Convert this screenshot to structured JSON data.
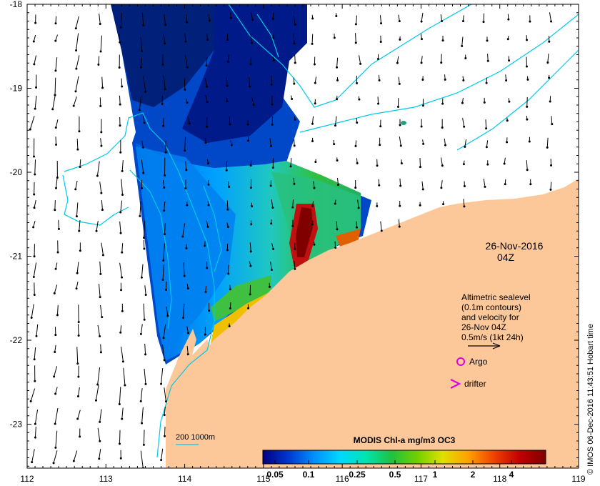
{
  "map": {
    "x_ticks": [
      "112",
      "113",
      "114",
      "115",
      "116",
      "117",
      "118",
      "119"
    ],
    "y_ticks": [
      "-18",
      "-19",
      "-20",
      "-21",
      "-22",
      "-23"
    ],
    "date": "26-Nov-2016",
    "time": "04Z",
    "info_lines": [
      "Altimetric sealevel",
      "(0.1m contours)",
      "and velocity for",
      "26-Nov 04Z",
      "0.5m/s (1kt 24h)"
    ],
    "argo_label": "Argo",
    "drifter_label": "drifter",
    "depth_label": "200  1000m",
    "credit": "© IMOS 06-Dec-2016 11:43:51 Hobart time"
  },
  "colorbar": {
    "title": "MODIS Chl-a mg/m3 OC3",
    "ticks": [
      "0.05",
      "0.1",
      "0.25",
      "0.5",
      "1",
      "2",
      "4"
    ],
    "stops": [
      "#000080",
      "#0038d0",
      "#0090ff",
      "#00d8ff",
      "#00e4b0",
      "#20c040",
      "#70d000",
      "#e0e000",
      "#ffa000",
      "#f04000",
      "#c00000",
      "#800000"
    ]
  },
  "colors": {
    "land": "#fcc89a",
    "contour": "#00c8e8",
    "argo": "#e000e0",
    "drifter": "#e000e0"
  }
}
